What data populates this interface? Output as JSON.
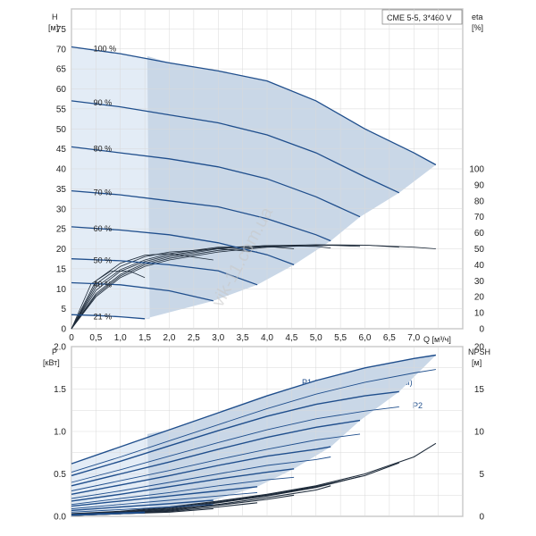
{
  "header": {
    "model_box": "CME 5-5, 3*460 V"
  },
  "colors": {
    "region": "#c9d7e7",
    "region_light": "#e3ecf6",
    "curve_main": "#1f4e8c",
    "curve_thin": "#1e2b3a",
    "grid": "#d9d9d9",
    "axis": "#8c8c8c"
  },
  "watermark": "vik-11.com.ua",
  "chart_data": [
    {
      "type": "line",
      "title": "",
      "xlabel": "Q [м³/ч]",
      "ylabel_left": "H [м]",
      "ylabel_right": "eta [%]",
      "xlim": [
        0,
        8
      ],
      "ylim": [
        0,
        80
      ],
      "x_ticks": [
        "0",
        "0,5",
        "1,0",
        "1,5",
        "2,0",
        "2,5",
        "3,0",
        "3,5",
        "4,0",
        "4,5",
        "5,0",
        "5,5",
        "6,0",
        "6,5",
        "7,0"
      ],
      "y_ticks_left": [
        "0",
        "5",
        "10",
        "15",
        "20",
        "25",
        "30",
        "35",
        "40",
        "45",
        "50",
        "55",
        "60",
        "65",
        "70",
        "75"
      ],
      "y_ticks_right": [
        "0",
        "10",
        "20",
        "30",
        "40",
        "50",
        "60",
        "70",
        "80",
        "90",
        "100"
      ],
      "speed_labels": [
        "100 %",
        "90 %",
        "80 %",
        "70 %",
        "60 %",
        "50 %",
        "40 %",
        "21 %"
      ],
      "head_curves": [
        {
          "speed": "100 %",
          "x": [
            0,
            1,
            2,
            3,
            4,
            5,
            6,
            7,
            7.45
          ],
          "y": [
            70.5,
            68.8,
            66.5,
            64.5,
            62,
            57,
            50,
            44,
            41
          ]
        },
        {
          "speed": "90 %",
          "x": [
            0,
            1,
            2,
            3,
            4,
            5,
            6,
            6.7
          ],
          "y": [
            57,
            55.5,
            53.5,
            51.5,
            48.5,
            44,
            38,
            34
          ]
        },
        {
          "speed": "80 %",
          "x": [
            0,
            1,
            2,
            3,
            4,
            5,
            5.9
          ],
          "y": [
            45.5,
            44,
            42.5,
            40.5,
            37.5,
            33,
            28
          ]
        },
        {
          "speed": "70 %",
          "x": [
            0,
            1,
            2,
            3,
            4,
            5,
            5.3
          ],
          "y": [
            34.5,
            33.5,
            32,
            30.5,
            27.5,
            23.5,
            22
          ]
        },
        {
          "speed": "60 %",
          "x": [
            0,
            1,
            2,
            3,
            4,
            4.55
          ],
          "y": [
            25.5,
            24.7,
            23.5,
            21.5,
            18.5,
            16
          ]
        },
        {
          "speed": "50 %",
          "x": [
            0,
            1,
            2,
            3,
            3.8
          ],
          "y": [
            17.5,
            17,
            16,
            14.5,
            11
          ]
        },
        {
          "speed": "40 %",
          "x": [
            0,
            1,
            2,
            2.9
          ],
          "y": [
            11.5,
            11,
            9.5,
            7
          ]
        },
        {
          "speed": "21 %",
          "x": [
            0,
            0.5,
            1,
            1.5
          ],
          "y": [
            3.5,
            3.3,
            3,
            2.5
          ]
        }
      ],
      "efficiency_curves": [
        {
          "x": [
            0,
            0.5,
            1,
            1.5,
            2,
            3,
            4,
            5,
            6,
            7,
            7.45
          ],
          "y": [
            0,
            20,
            32,
            39,
            43,
            48,
            51,
            52,
            52.3,
            51,
            50
          ]
        },
        {
          "x": [
            0,
            0.5,
            1,
            1.5,
            2,
            3,
            4,
            5,
            6,
            6.7
          ],
          "y": [
            0,
            21,
            33,
            40,
            44,
            49,
            51.5,
            52.5,
            52.3,
            51
          ]
        },
        {
          "x": [
            0,
            0.5,
            1,
            1.5,
            2,
            3,
            4,
            5,
            5.9
          ],
          "y": [
            0,
            22,
            34,
            41,
            45,
            50,
            52,
            52.5,
            51.5
          ]
        },
        {
          "x": [
            0,
            0.5,
            1,
            1.5,
            2,
            3,
            4,
            5,
            5.3
          ],
          "y": [
            0,
            24,
            36,
            42,
            46,
            50.5,
            52,
            51.5,
            50.5
          ]
        },
        {
          "x": [
            0,
            0.5,
            1,
            1.5,
            2,
            3,
            4,
            4.55
          ],
          "y": [
            0,
            26,
            37,
            43,
            47,
            51,
            51.5,
            50
          ]
        },
        {
          "x": [
            0,
            0.5,
            1,
            1.5,
            2,
            3,
            3.8
          ],
          "y": [
            0,
            28,
            39,
            45,
            48,
            50,
            48
          ]
        },
        {
          "x": [
            0,
            0.5,
            1,
            1.5,
            2,
            2.9
          ],
          "y": [
            0,
            30,
            41,
            46,
            47,
            43
          ]
        },
        {
          "x": [
            0,
            0.4,
            0.8,
            1.2,
            1.5
          ],
          "y": [
            0,
            28,
            36,
            36,
            32
          ]
        }
      ],
      "npsh_curves": [
        {
          "x": [
            0,
            1,
            2,
            3,
            4,
            5,
            6,
            7,
            7.45
          ],
          "y": [
            0.3,
            0.6,
            1.1,
            1.8,
            2.6,
            3.6,
            5.0,
            7.0,
            8.6
          ]
        },
        {
          "x": [
            0,
            1,
            2,
            3,
            4,
            5,
            6,
            6.7
          ],
          "y": [
            0.3,
            0.5,
            1.0,
            1.7,
            2.5,
            3.5,
            4.8,
            6.3
          ]
        },
        {
          "x": [
            0,
            1,
            2,
            3,
            4,
            5,
            5.9
          ],
          "y": [
            0.2,
            0.5,
            0.9,
            1.6,
            2.4,
            3.4,
            4.7
          ]
        },
        {
          "x": [
            0,
            1,
            2,
            3,
            4,
            5,
            5.3
          ],
          "y": [
            0.2,
            0.4,
            0.8,
            1.4,
            2.2,
            3.1,
            3.6
          ]
        },
        {
          "x": [
            0,
            1,
            2,
            3,
            4,
            4.55
          ],
          "y": [
            0.2,
            0.4,
            0.7,
            1.3,
            2.0,
            2.5
          ]
        },
        {
          "x": [
            0,
            1,
            2,
            3,
            3.8
          ],
          "y": [
            0.1,
            0.3,
            0.6,
            1.1,
            1.6
          ]
        },
        {
          "x": [
            0,
            1,
            2,
            2.9
          ],
          "y": [
            0.1,
            0.3,
            0.5,
            0.9
          ]
        },
        {
          "x": [
            0,
            0.5,
            1,
            1.5
          ],
          "y": [
            0.1,
            0.2,
            0.3,
            0.4
          ]
        }
      ]
    },
    {
      "type": "line",
      "title": "",
      "xlabel": "",
      "ylabel_left": "P [кВт]",
      "ylabel_right": "NPSH [м]",
      "xlim": [
        0,
        8
      ],
      "ylim": [
        0,
        2.0
      ],
      "y_ticks_left": [
        "0.0",
        "0.5",
        "1.0",
        "1.5",
        "2.0"
      ],
      "y_ticks_right": [
        "0",
        "5",
        "10",
        "15",
        "20"
      ],
      "series_labels": [
        "P1 (двиг.+преобр-ль частоты)",
        "P2"
      ],
      "p1_curves": [
        {
          "x": [
            0,
            1,
            2,
            3,
            4,
            5,
            6,
            7,
            7.45
          ],
          "y": [
            0.62,
            0.82,
            1.02,
            1.22,
            1.42,
            1.6,
            1.75,
            1.86,
            1.9
          ]
        },
        {
          "x": [
            0,
            1,
            2,
            3,
            4,
            5,
            6,
            6.7
          ],
          "y": [
            0.48,
            0.65,
            0.83,
            1.01,
            1.18,
            1.32,
            1.42,
            1.47
          ]
        },
        {
          "x": [
            0,
            1,
            2,
            3,
            4,
            5,
            5.9
          ],
          "y": [
            0.36,
            0.5,
            0.64,
            0.79,
            0.93,
            1.05,
            1.13
          ]
        },
        {
          "x": [
            0,
            1,
            2,
            3,
            4,
            5,
            5.3
          ],
          "y": [
            0.26,
            0.37,
            0.48,
            0.6,
            0.71,
            0.79,
            0.82
          ]
        },
        {
          "x": [
            0,
            1,
            2,
            3,
            4,
            4.55
          ],
          "y": [
            0.18,
            0.26,
            0.35,
            0.44,
            0.52,
            0.56
          ]
        },
        {
          "x": [
            0,
            1,
            2,
            3,
            3.8
          ],
          "y": [
            0.12,
            0.18,
            0.24,
            0.3,
            0.35
          ]
        },
        {
          "x": [
            0,
            1,
            2,
            2.9
          ],
          "y": [
            0.07,
            0.11,
            0.15,
            0.19
          ]
        },
        {
          "x": [
            0,
            0.5,
            1,
            1.5
          ],
          "y": [
            0.02,
            0.03,
            0.04,
            0.05
          ]
        }
      ],
      "p2_curves": [
        {
          "x": [
            0,
            1,
            2,
            3,
            4,
            5,
            6,
            7,
            7.45
          ],
          "y": [
            0.52,
            0.7,
            0.89,
            1.08,
            1.27,
            1.44,
            1.58,
            1.69,
            1.73
          ]
        },
        {
          "x": [
            0,
            1,
            2,
            3,
            4,
            5,
            6,
            6.7
          ],
          "y": [
            0.4,
            0.55,
            0.71,
            0.87,
            1.02,
            1.15,
            1.24,
            1.29
          ]
        },
        {
          "x": [
            0,
            1,
            2,
            3,
            4,
            5,
            5.9
          ],
          "y": [
            0.3,
            0.42,
            0.54,
            0.67,
            0.79,
            0.9,
            0.97
          ]
        },
        {
          "x": [
            0,
            1,
            2,
            3,
            4,
            5,
            5.3
          ],
          "y": [
            0.21,
            0.3,
            0.4,
            0.5,
            0.6,
            0.67,
            0.7
          ]
        },
        {
          "x": [
            0,
            1,
            2,
            3,
            4,
            4.55
          ],
          "y": [
            0.14,
            0.21,
            0.28,
            0.36,
            0.43,
            0.46
          ]
        },
        {
          "x": [
            0,
            1,
            2,
            3,
            3.8
          ],
          "y": [
            0.09,
            0.14,
            0.19,
            0.24,
            0.28
          ]
        },
        {
          "x": [
            0,
            1,
            2,
            2.9
          ],
          "y": [
            0.05,
            0.08,
            0.11,
            0.14
          ]
        },
        {
          "x": [
            0,
            0.5,
            1,
            1.5
          ],
          "y": [
            0.01,
            0.02,
            0.03,
            0.04
          ]
        }
      ]
    }
  ]
}
